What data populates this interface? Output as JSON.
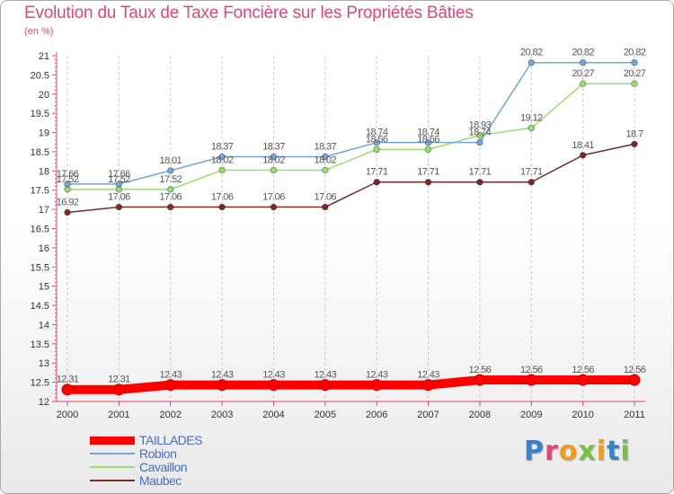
{
  "chart_data": {
    "type": "line",
    "title": "Evolution du Taux de Taxe Foncière sur les Propriétés Bâties",
    "unit_label": "(en %)",
    "xlabel": "",
    "ylabel": "",
    "categories": [
      "2000",
      "2001",
      "2002",
      "2003",
      "2004",
      "2005",
      "2006",
      "2007",
      "2008",
      "2009",
      "2010",
      "2011"
    ],
    "yticks": [
      12,
      12.5,
      13,
      13.5,
      14,
      14.5,
      15,
      15.5,
      16,
      16.5,
      17,
      17.5,
      18,
      18.5,
      19,
      19.5,
      20,
      20.5,
      21
    ],
    "ylim": [
      12,
      21
    ],
    "grid": "vertical-dashed",
    "legend_position": "bottom-left",
    "series": [
      {
        "name": "TAILLADES",
        "color": "#ff0000",
        "values": [
          12.31,
          12.31,
          12.43,
          12.43,
          12.43,
          12.43,
          12.43,
          12.43,
          12.56,
          12.56,
          12.56,
          12.56
        ]
      },
      {
        "name": "Robion",
        "color": "#72a8dc",
        "values": [
          17.66,
          17.66,
          18.01,
          18.37,
          18.37,
          18.37,
          18.74,
          18.74,
          18.74,
          20.82,
          20.82,
          20.82
        ]
      },
      {
        "name": "Cavaillon",
        "color": "#98e06a",
        "values": [
          17.52,
          17.52,
          17.52,
          18.02,
          18.02,
          18.02,
          18.56,
          18.56,
          18.93,
          19.12,
          20.27,
          20.27
        ]
      },
      {
        "name": "Maubec",
        "color": "#7a2a2a",
        "values": [
          16.92,
          17.06,
          17.06,
          17.06,
          17.06,
          17.06,
          17.71,
          17.71,
          17.71,
          17.71,
          18.41,
          18.7
        ]
      }
    ]
  },
  "logo": {
    "text": "Proxiti",
    "colors": [
      "#3b82c4",
      "#e0457b",
      "#f29a1a",
      "#7ac143"
    ]
  }
}
